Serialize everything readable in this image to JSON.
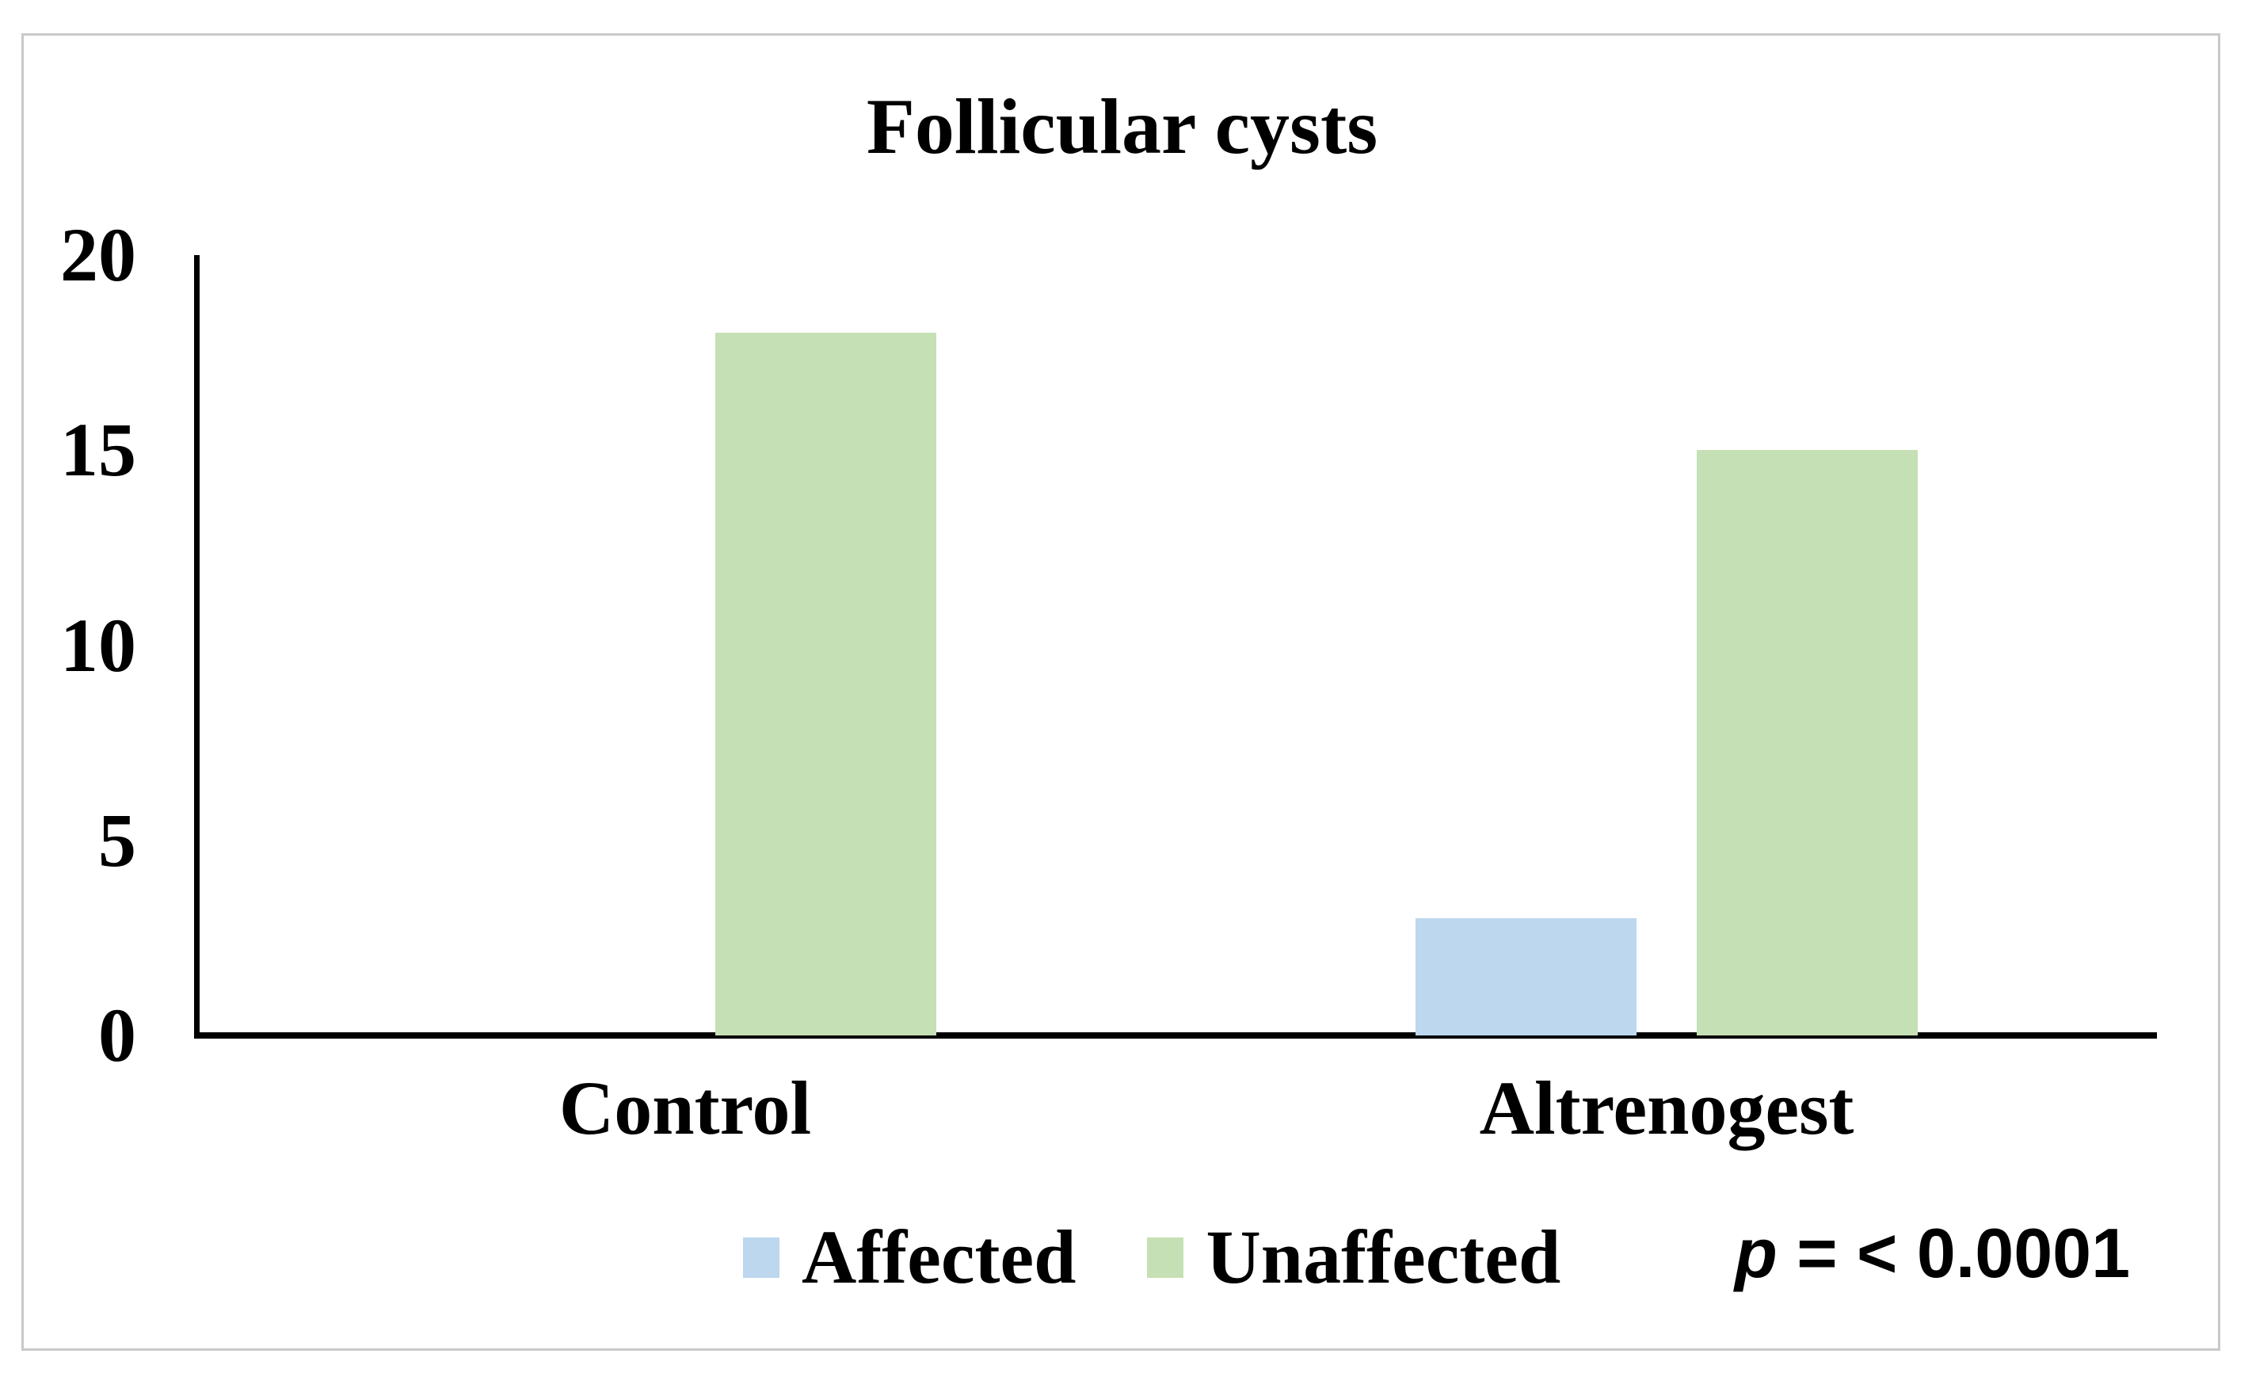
{
  "canvas": {
    "background": "#ffffff",
    "frame_border_color": "#c9c9c9"
  },
  "chart_data": {
    "type": "bar",
    "title": "Follicular cysts",
    "categories": [
      "Control",
      "Altrenogest"
    ],
    "series": [
      {
        "name": "Affected",
        "color": "#bdd7ee",
        "values": [
          0,
          3
        ]
      },
      {
        "name": "Unaffected",
        "color": "#c5e0b4",
        "values": [
          18,
          15
        ]
      }
    ],
    "xlabel": "",
    "ylabel": "",
    "ylim": [
      0,
      20
    ],
    "yticks": [
      0,
      5,
      10,
      15,
      20
    ],
    "grid": false,
    "legend_position": "bottom-center",
    "axis_color": "#000000",
    "text_color": "#000000",
    "annotation": {
      "italic_part": "p",
      "text_part": " = < 0.0001"
    }
  }
}
